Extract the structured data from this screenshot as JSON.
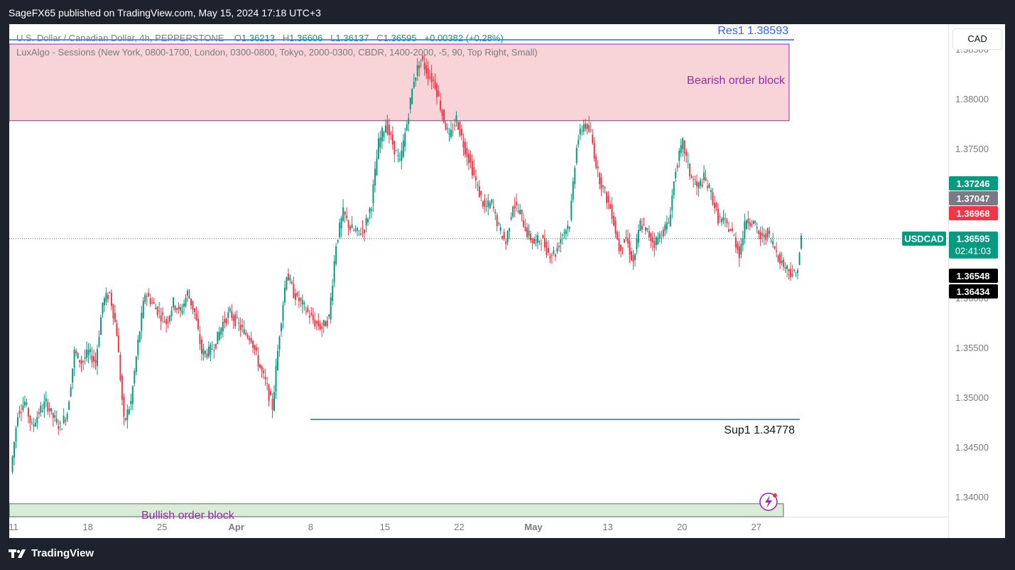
{
  "header": {
    "publisher_line": "SageFX65 published on TradingView.com, May 15, 2024 17:18 UTC+3"
  },
  "footer": {
    "brand": "TradingView"
  },
  "legend": {
    "symbol_line_prefix": "U.S. Dollar / Canadian Dollar, 4h, PEPPERSTONE",
    "o_label": "O",
    "o_value": "1.36213",
    "h_label": "H",
    "h_value": "1.36606",
    "l_label": "L",
    "l_value": "1.36137",
    "c_label": "C",
    "c_value": "1.36595",
    "change": "+0.00382 (+0.28%)",
    "indicator_line": "LuxAlgo - Sessions (New York, 0800-1700, London, 0300-0800, Tokyo, 2000-0300, CBDR, 1400-2000, -5, 90, Top Right, Small)"
  },
  "currency_button": "CAD",
  "colors": {
    "up": "#089981",
    "down": "#f23645",
    "resistance": "#2962ff",
    "support": "#2962ff",
    "bearish_zone_fill": "#f8d3d7",
    "bearish_zone_border": "#9c27b0",
    "bullish_zone_fill": "#d8ecd8",
    "zone_text": "#9c27b0"
  },
  "chart_data": {
    "type": "candlestick",
    "title": "U.S. Dollar / Canadian Dollar, 4h, PEPPERSTONE",
    "ylim": [
      1.338,
      1.3875
    ],
    "y_ticks": [
      "1.38500",
      "1.38000",
      "1.37500",
      "1.37000",
      "1.36500",
      "1.36000",
      "1.35500",
      "1.35000",
      "1.34500",
      "1.34000"
    ],
    "y_tick_values": [
      1.385,
      1.38,
      1.375,
      1.37,
      1.365,
      1.36,
      1.355,
      1.35,
      1.345,
      1.34
    ],
    "x_ticks": [
      "11",
      "18",
      "25",
      "Apr",
      "8",
      "15",
      "22",
      "May",
      "13",
      "20",
      "27"
    ],
    "x_tick_index": [
      0,
      42,
      84,
      126,
      168,
      210,
      252,
      294,
      336,
      378,
      420
    ],
    "close_path": [
      [
        0,
        1.3425
      ],
      [
        4,
        1.3485
      ],
      [
        8,
        1.3495
      ],
      [
        12,
        1.347
      ],
      [
        16,
        1.3485
      ],
      [
        20,
        1.3495
      ],
      [
        24,
        1.348
      ],
      [
        28,
        1.347
      ],
      [
        32,
        1.3485
      ],
      [
        36,
        1.3545
      ],
      [
        40,
        1.3535
      ],
      [
        44,
        1.3545
      ],
      [
        48,
        1.3535
      ],
      [
        52,
        1.3595
      ],
      [
        56,
        1.3605
      ],
      [
        60,
        1.3565
      ],
      [
        64,
        1.3475
      ],
      [
        68,
        1.3495
      ],
      [
        72,
        1.3555
      ],
      [
        76,
        1.3605
      ],
      [
        80,
        1.3595
      ],
      [
        84,
        1.3585
      ],
      [
        88,
        1.3575
      ],
      [
        92,
        1.3595
      ],
      [
        96,
        1.3585
      ],
      [
        100,
        1.3605
      ],
      [
        104,
        1.3585
      ],
      [
        108,
        1.3545
      ],
      [
        112,
        1.3545
      ],
      [
        116,
        1.3555
      ],
      [
        120,
        1.3575
      ],
      [
        124,
        1.3585
      ],
      [
        128,
        1.3575
      ],
      [
        132,
        1.3565
      ],
      [
        136,
        1.356
      ],
      [
        140,
        1.3535
      ],
      [
        144,
        1.3515
      ],
      [
        148,
        1.349
      ],
      [
        152,
        1.3565
      ],
      [
        156,
        1.3625
      ],
      [
        160,
        1.3605
      ],
      [
        164,
        1.3595
      ],
      [
        168,
        1.3585
      ],
      [
        172,
        1.3575
      ],
      [
        176,
        1.357
      ],
      [
        180,
        1.358
      ],
      [
        184,
        1.3655
      ],
      [
        188,
        1.3685
      ],
      [
        192,
        1.367
      ],
      [
        196,
        1.3665
      ],
      [
        200,
        1.367
      ],
      [
        204,
        1.3695
      ],
      [
        208,
        1.3755
      ],
      [
        212,
        1.3775
      ],
      [
        216,
        1.3755
      ],
      [
        220,
        1.3735
      ],
      [
        224,
        1.3775
      ],
      [
        228,
        1.382
      ],
      [
        232,
        1.384
      ],
      [
        236,
        1.3825
      ],
      [
        240,
        1.3815
      ],
      [
        244,
        1.3785
      ],
      [
        248,
        1.376
      ],
      [
        252,
        1.378
      ],
      [
        256,
        1.3755
      ],
      [
        260,
        1.3735
      ],
      [
        264,
        1.371
      ],
      [
        268,
        1.369
      ],
      [
        272,
        1.3695
      ],
      [
        276,
        1.367
      ],
      [
        280,
        1.3655
      ],
      [
        284,
        1.3695
      ],
      [
        288,
        1.3685
      ],
      [
        292,
        1.3665
      ],
      [
        296,
        1.3655
      ],
      [
        300,
        1.366
      ],
      [
        304,
        1.3645
      ],
      [
        308,
        1.3645
      ],
      [
        312,
        1.3665
      ],
      [
        316,
        1.3675
      ],
      [
        320,
        1.3755
      ],
      [
        324,
        1.3775
      ],
      [
        328,
        1.3765
      ],
      [
        332,
        1.3725
      ],
      [
        336,
        1.3705
      ],
      [
        340,
        1.3685
      ],
      [
        344,
        1.365
      ],
      [
        348,
        1.366
      ],
      [
        352,
        1.3635
      ],
      [
        356,
        1.3675
      ],
      [
        360,
        1.3665
      ],
      [
        364,
        1.3655
      ],
      [
        368,
        1.3665
      ],
      [
        372,
        1.3675
      ],
      [
        376,
        1.373
      ],
      [
        380,
        1.3755
      ],
      [
        384,
        1.3725
      ],
      [
        388,
        1.371
      ],
      [
        392,
        1.372
      ],
      [
        396,
        1.3705
      ],
      [
        400,
        1.368
      ],
      [
        404,
        1.3675
      ],
      [
        408,
        1.3665
      ],
      [
        412,
        1.3645
      ],
      [
        416,
        1.368
      ],
      [
        420,
        1.3675
      ],
      [
        424,
        1.366
      ],
      [
        428,
        1.3665
      ],
      [
        432,
        1.365
      ],
      [
        436,
        1.3635
      ],
      [
        440,
        1.3628
      ],
      [
        444,
        1.3621
      ],
      [
        447,
        1.3659
      ]
    ],
    "levels": [
      {
        "name": "Res1",
        "label": "Res1 1.38593",
        "value": 1.38593
      },
      {
        "name": "Sup1",
        "label": "Sup1 1.34778",
        "value": 1.34778
      }
    ],
    "zones": [
      {
        "label": "Bearish order block",
        "top": 1.3855,
        "bottom": 1.3778
      },
      {
        "label": "Bullish order block",
        "top": 1.3393,
        "bottom": 1.3378
      }
    ],
    "price_labels": [
      {
        "value": "1.37246",
        "color": "#089981"
      },
      {
        "value": "1.37047",
        "color": "#787b86"
      },
      {
        "value": "1.36968",
        "color": "#f23645"
      },
      {
        "value": "1.36548",
        "color": "#000000"
      },
      {
        "value": "1.36434",
        "color": "#000000"
      }
    ],
    "current": {
      "symbol": "USDCAD",
      "price": "1.36595",
      "countdown": "02:41:03",
      "value": 1.36595
    }
  }
}
